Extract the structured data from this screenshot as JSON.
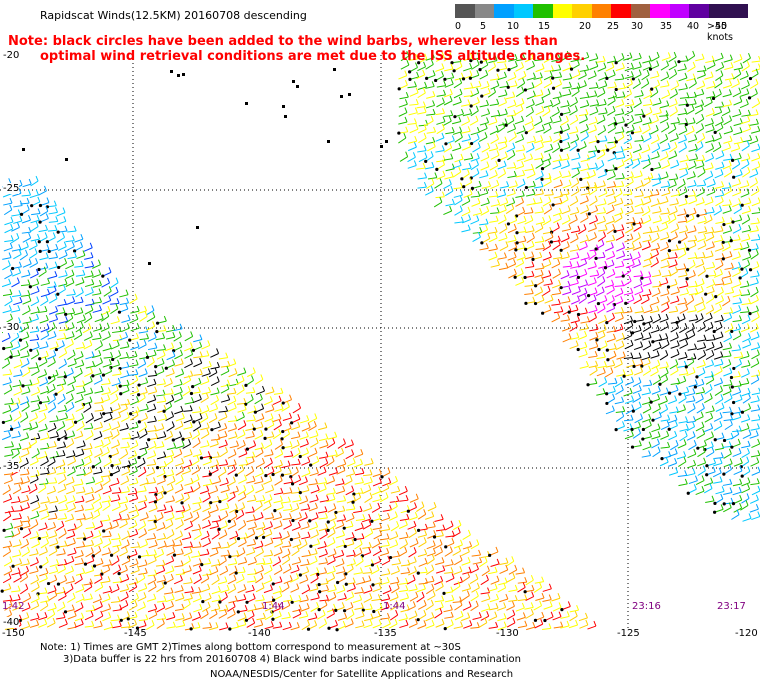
{
  "title": "Rapidscat Winds(12.5KM) 20160708 descending",
  "note_line1": "Note: black circles have been added to the wind barbs, wherever less than",
  "note_line2": "optimal wind retrieval conditions are met due to the ISS altitude changes.",
  "scale": {
    "labels": [
      "0",
      "5",
      "10",
      "15",
      "20",
      "25",
      "30",
      "35",
      "40",
      "45",
      ">50 knots"
    ],
    "colors": [
      "#555555",
      "#888888",
      "#00a0ff",
      "#00c8ff",
      "#20c000",
      "#ffff00",
      "#ffd000",
      "#ff8000",
      "#ff0000",
      "#a06040",
      "#ff00ff",
      "#c000ff",
      "#6000a0",
      "#301050",
      "#301050"
    ]
  },
  "lat_labels": [
    "-20",
    "-25",
    "-30",
    "-35",
    "-40"
  ],
  "lon_labels": [
    "-150",
    "-145",
    "-140",
    "-135",
    "-130",
    "-125",
    "-120"
  ],
  "time_labels": [
    "1:42",
    "1:44",
    "1:44",
    "23:16",
    "23:17"
  ],
  "bottom": {
    "line1": "Note: 1) Times are GMT  2)Times along bottom correspond to measurement at ~30S",
    "line2": "3)Data buffer is 22 hrs from 20160708  4) Black wind barbs indicate possible contamination",
    "credit": "NOAA/NESDIS/Center for Satellite Applications and Research"
  }
}
